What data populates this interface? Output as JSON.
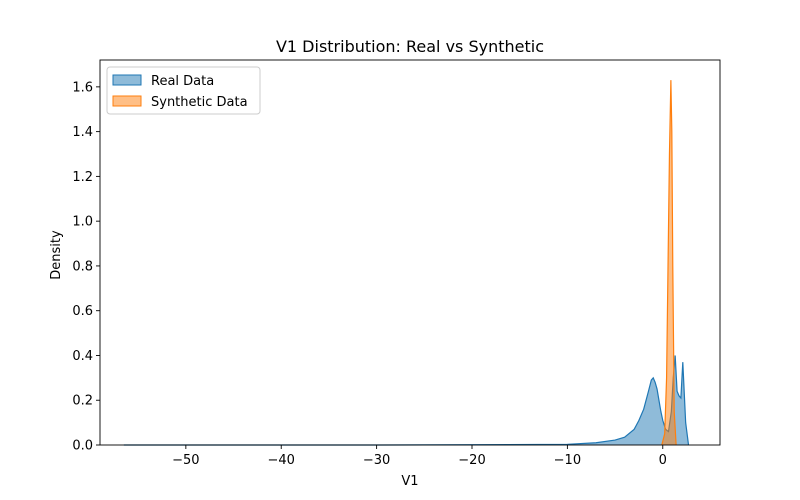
{
  "chart_data": {
    "type": "area",
    "title": "V1 Distribution: Real vs Synthetic",
    "xlabel": "V1",
    "ylabel": "Density",
    "xlim": [
      -59,
      6
    ],
    "ylim": [
      0,
      1.72
    ],
    "xticks": [
      -50,
      -40,
      -30,
      -20,
      -10,
      0
    ],
    "xtick_labels": [
      "−50",
      "−40",
      "−30",
      "−20",
      "−10",
      "0"
    ],
    "yticks": [
      0.0,
      0.2,
      0.4,
      0.6,
      0.8,
      1.0,
      1.2,
      1.4,
      1.6
    ],
    "ytick_labels": [
      "0.0",
      "0.2",
      "0.4",
      "0.6",
      "0.8",
      "1.0",
      "1.2",
      "1.4",
      "1.6"
    ],
    "grid": false,
    "legend_position": "top-left",
    "series": [
      {
        "name": "Real Data",
        "color": "#1f77b4",
        "x": [
          -56.5,
          -40,
          -30,
          -20,
          -10,
          -7,
          -5,
          -4,
          -3,
          -2.5,
          -2,
          -1.5,
          -1.2,
          -1.0,
          -0.8,
          -0.6,
          -0.4,
          -0.2,
          0,
          0.3,
          0.6,
          0.9,
          1.1,
          1.3,
          1.5,
          1.7,
          1.9,
          2.1,
          2.4,
          2.7
        ],
        "y": [
          0.0,
          0.0,
          0.0,
          0.001,
          0.003,
          0.01,
          0.022,
          0.035,
          0.07,
          0.11,
          0.16,
          0.24,
          0.29,
          0.3,
          0.28,
          0.25,
          0.2,
          0.15,
          0.11,
          0.07,
          0.06,
          0.15,
          0.3,
          0.4,
          0.24,
          0.22,
          0.21,
          0.37,
          0.1,
          0.0
        ]
      },
      {
        "name": "Synthetic Data",
        "color": "#ff7f0e",
        "x": [
          -0.1,
          0.2,
          0.4,
          0.55,
          0.7,
          0.85,
          0.95,
          1.05,
          1.2,
          1.4
        ],
        "y": [
          0.0,
          0.05,
          0.3,
          0.8,
          1.3,
          1.63,
          1.4,
          0.8,
          0.15,
          0.0
        ]
      }
    ]
  }
}
